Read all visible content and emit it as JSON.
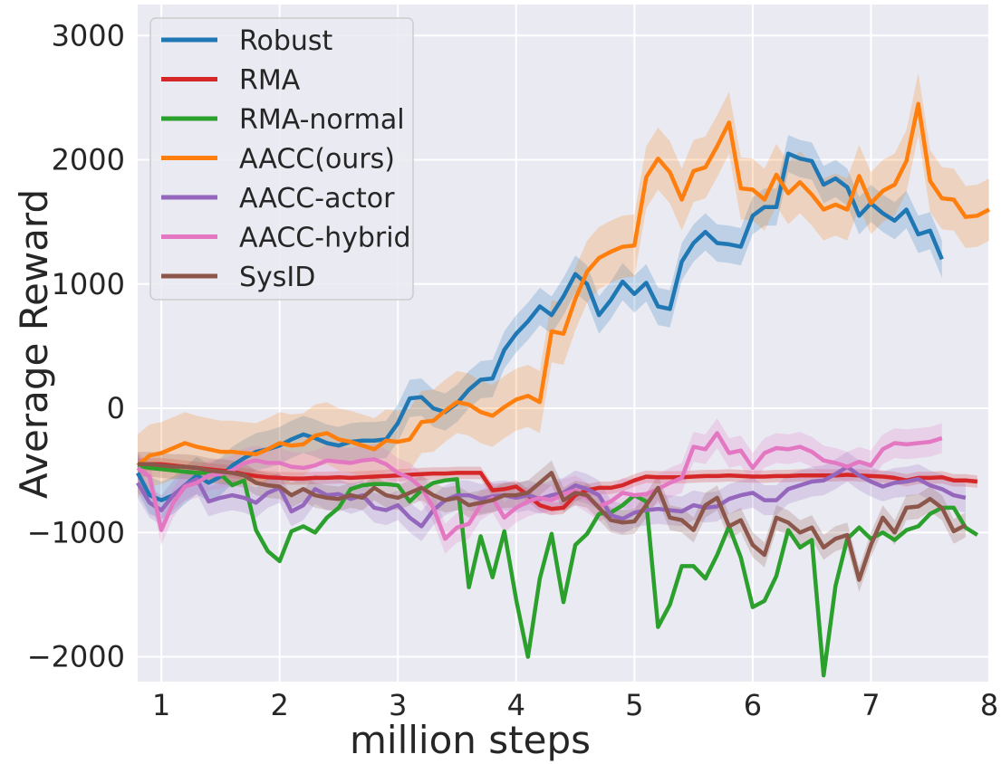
{
  "chart_data": {
    "type": "line",
    "xlabel": "million steps",
    "ylabel": "Average Reward",
    "xlim": [
      0.8,
      8.0
    ],
    "ylim": [
      -2200,
      3250
    ],
    "xticks": [
      1,
      2,
      3,
      4,
      5,
      6,
      7,
      8
    ],
    "xtick_labels": [
      "1",
      "2",
      "3",
      "4",
      "5",
      "6",
      "7",
      "8"
    ],
    "yticks": [
      -2000,
      -1000,
      0,
      1000,
      2000,
      3000
    ],
    "ytick_labels": [
      "−2000",
      "−1000",
      "0",
      "1000",
      "2000",
      "3000"
    ],
    "grid": true,
    "legend_position": "top-left",
    "x_start": 0.8,
    "x_step": 0.1,
    "series": [
      {
        "name": "Robust",
        "color": "#1f77b4",
        "band": 150,
        "values": [
          -520,
          -700,
          -740,
          -700,
          -620,
          -540,
          -600,
          -550,
          -460,
          -400,
          -350,
          -330,
          -300,
          -250,
          -210,
          -240,
          -280,
          -300,
          -270,
          -260,
          -260,
          -250,
          -120,
          80,
          90,
          0,
          -30,
          40,
          150,
          230,
          240,
          470,
          600,
          700,
          820,
          750,
          900,
          1080,
          1000,
          750,
          870,
          1020,
          920,
          1010,
          820,
          800,
          1180,
          1330,
          1420,
          1330,
          1320,
          1300,
          1550,
          1620,
          1620,
          2050,
          2010,
          1990,
          1800,
          1850,
          1780,
          1550,
          1650,
          1570,
          1510,
          1600,
          1400,
          1430,
          1200
        ]
      },
      {
        "name": "RMA",
        "color": "#d62728",
        "band": 50,
        "values": [
          -450,
          -450,
          -450,
          -460,
          -470,
          -480,
          -490,
          -500,
          -510,
          -530,
          -545,
          -555,
          -560,
          -565,
          -565,
          -560,
          -560,
          -555,
          -560,
          -555,
          -550,
          -545,
          -540,
          -535,
          -530,
          -525,
          -525,
          -520,
          -520,
          -520,
          -660,
          -650,
          -630,
          -700,
          -780,
          -810,
          -800,
          -700,
          -660,
          -640,
          -640,
          -620,
          -580,
          -550,
          -555,
          -555,
          -555,
          -550,
          -545,
          -545,
          -540,
          -545,
          -550,
          -550,
          -545,
          -545,
          -540,
          -540,
          -540,
          -540,
          -535,
          -540,
          -545,
          -550,
          -560,
          -580,
          -560,
          -560,
          -555,
          -580,
          -580,
          -590
        ]
      },
      {
        "name": "RMA-normal",
        "color": "#2ca02c",
        "band": 0,
        "values": [
          -460,
          -480,
          -490,
          -500,
          -510,
          -520,
          -520,
          -530,
          -620,
          -580,
          -980,
          -1150,
          -1230,
          -990,
          -950,
          -1000,
          -880,
          -800,
          -650,
          -620,
          -610,
          -610,
          -620,
          -750,
          -660,
          -600,
          -580,
          -570,
          -1440,
          -1030,
          -1360,
          -990,
          -1540,
          -2000,
          -1370,
          -1010,
          -1560,
          -1100,
          -1010,
          -850,
          -840,
          -780,
          -700,
          -750,
          -1760,
          -1580,
          -1270,
          -1270,
          -1370,
          -1180,
          -950,
          -1200,
          -1600,
          -1550,
          -1350,
          -980,
          -1120,
          -1060,
          -2150,
          -1430,
          -1050,
          -960,
          -1050,
          -1000,
          -1060,
          -980,
          -950,
          -850,
          -800,
          -800,
          -960,
          -1020
        ]
      },
      {
        "name": "AACC(ours)",
        "color": "#ff7f0e",
        "band": 250,
        "values": [
          -460,
          -380,
          -360,
          -320,
          -280,
          -310,
          -330,
          -350,
          -350,
          -360,
          -370,
          -330,
          -280,
          -300,
          -290,
          -220,
          -200,
          -250,
          -270,
          -300,
          -330,
          -260,
          -270,
          -250,
          -110,
          -100,
          -20,
          50,
          30,
          -30,
          -60,
          10,
          70,
          100,
          50,
          620,
          600,
          880,
          1100,
          1210,
          1260,
          1300,
          1310,
          1860,
          2010,
          1900,
          1680,
          1910,
          1940,
          2110,
          2300,
          1770,
          1760,
          1680,
          1880,
          1730,
          1820,
          1720,
          1600,
          1640,
          1600,
          1870,
          1650,
          1750,
          1800,
          1990,
          2450,
          1830,
          1690,
          1680,
          1540,
          1550,
          1600
        ]
      },
      {
        "name": "AACC-actor",
        "color": "#9467bd",
        "band": 120,
        "values": [
          -600,
          -760,
          -820,
          -700,
          -620,
          -570,
          -750,
          -720,
          -700,
          -720,
          -760,
          -680,
          -640,
          -830,
          -780,
          -650,
          -700,
          -690,
          -730,
          -700,
          -800,
          -820,
          -780,
          -880,
          -950,
          -820,
          -740,
          -700,
          -700,
          -730,
          -710,
          -700,
          -720,
          -700,
          -730,
          -700,
          -680,
          -620,
          -650,
          -700,
          -860,
          -890,
          -840,
          -820,
          -810,
          -820,
          -830,
          -780,
          -800,
          -790,
          -730,
          -700,
          -680,
          -740,
          -740,
          -650,
          -620,
          -590,
          -580,
          -530,
          -470,
          -540,
          -590,
          -630,
          -600,
          -590,
          -570,
          -620,
          -650,
          -700,
          -720
        ]
      },
      {
        "name": "AACC-hybrid",
        "color": "#e377c2",
        "band": 120,
        "values": [
          -480,
          -550,
          -980,
          -760,
          -630,
          -600,
          -540,
          -530,
          -500,
          -440,
          -420,
          -440,
          -440,
          -470,
          -480,
          -460,
          -420,
          -430,
          -440,
          -420,
          -410,
          -450,
          -520,
          -560,
          -640,
          -800,
          -1050,
          -960,
          -930,
          -780,
          -720,
          -880,
          -800,
          -750,
          -720,
          -740,
          -690,
          -660,
          -720,
          -790,
          -750,
          -680,
          -700,
          -690,
          -650,
          -600,
          -560,
          -310,
          -330,
          -200,
          -360,
          -340,
          -480,
          -360,
          -320,
          -330,
          -310,
          -350,
          -420,
          -440,
          -470,
          -430,
          -460,
          -330,
          -280,
          -290,
          -280,
          -270,
          -240
        ]
      },
      {
        "name": "SysID",
        "color": "#8c564b",
        "band": 100,
        "values": [
          -450,
          -450,
          -460,
          -470,
          -470,
          -480,
          -500,
          -510,
          -520,
          -540,
          -600,
          -620,
          -630,
          -700,
          -650,
          -700,
          -720,
          -730,
          -700,
          -720,
          -640,
          -700,
          -720,
          -680,
          -640,
          -700,
          -740,
          -720,
          -780,
          -760,
          -740,
          -700,
          -700,
          -680,
          -600,
          -520,
          -740,
          -680,
          -700,
          -800,
          -900,
          -920,
          -910,
          -780,
          -640,
          -880,
          -900,
          -980,
          -780,
          -720,
          -950,
          -900,
          -1100,
          -1180,
          -880,
          -920,
          -1000,
          -960,
          -1120,
          -1050,
          -1020,
          -1380,
          -1100,
          -880,
          -1000,
          -800,
          -790,
          -730,
          -800,
          -990,
          -940
        ]
      }
    ]
  }
}
